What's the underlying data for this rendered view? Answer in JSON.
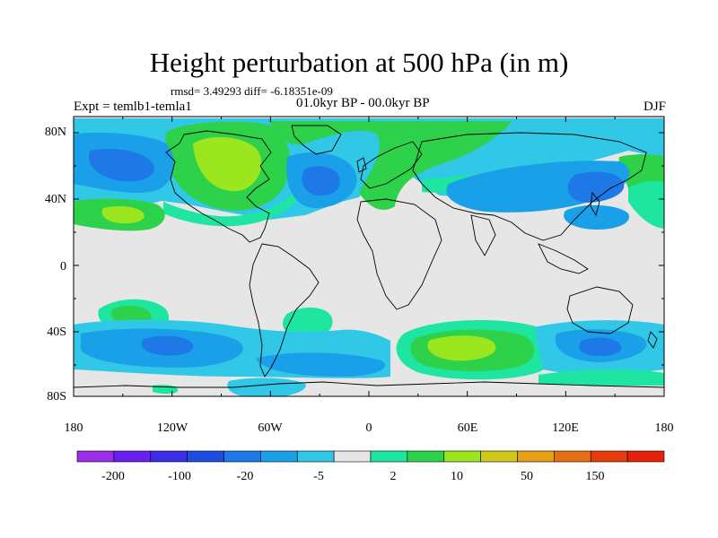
{
  "title": "Height perturbation at 500 hPa (in m)",
  "stats_line": "rmsd= 3.49293 diff= -6.18351e-09",
  "period_line": "01.0kyr BP - 00.0kyr BP",
  "experiment_line": "Expt = temlb1-temla1",
  "season": "DJF",
  "axes": {
    "lat_ticks": [
      "80N",
      "40N",
      "0",
      "40S",
      "80S"
    ],
    "lon_ticks": [
      "180",
      "120W",
      "60W",
      "0",
      "60E",
      "120E",
      "180"
    ]
  },
  "colorbar": {
    "colors": [
      "#9b2ee6",
      "#6a1ef0",
      "#3b2ee6",
      "#1d4ee0",
      "#1e78e6",
      "#1aa0e8",
      "#30c8e6",
      "#e6e6e6",
      "#1ee6a0",
      "#2ed24a",
      "#9be61e",
      "#d2c81a",
      "#e6a014",
      "#e66e14",
      "#e63c0a",
      "#e6200a"
    ],
    "labels": [
      "-200",
      "-100",
      "-20",
      "-5",
      "2",
      "10",
      "50",
      "150"
    ]
  },
  "map_fill": {
    "background": "#e6e6e6",
    "blue_dark": "#1e78e6",
    "blue_mid": "#1aa0e8",
    "cyan": "#30c8e6",
    "teal": "#1ee6a0",
    "green": "#2ed24a",
    "yellow_green": "#9be61e"
  }
}
